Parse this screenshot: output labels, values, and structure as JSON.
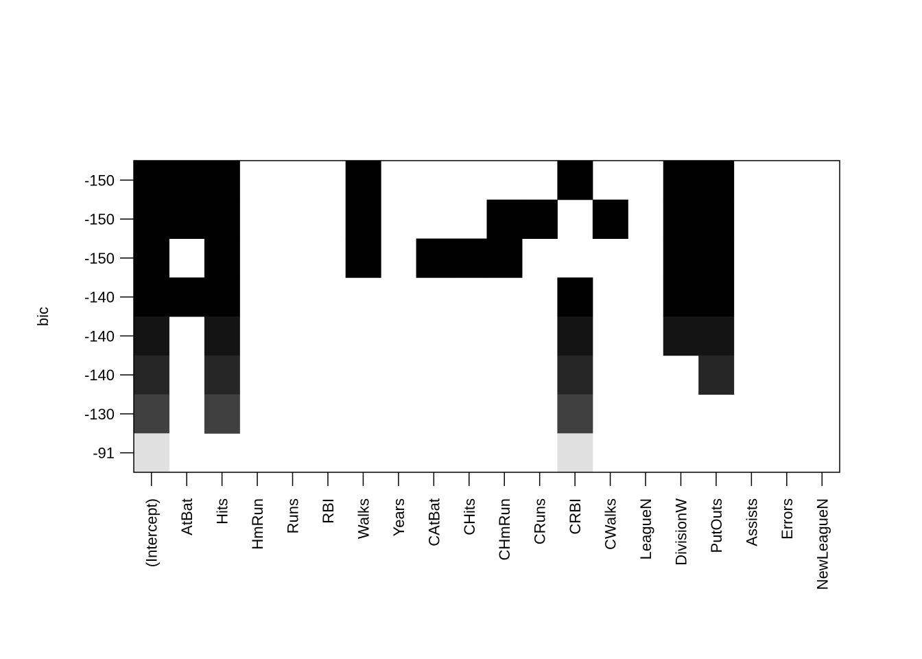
{
  "chart_data": {
    "type": "heatmap",
    "title": "",
    "xlabel": "",
    "ylabel": "bic",
    "grid": false,
    "variables": [
      "(Intercept)",
      "AtBat",
      "Hits",
      "HmRun",
      "Runs",
      "RBI",
      "Walks",
      "Years",
      "CAtBat",
      "CHits",
      "CHmRun",
      "CRuns",
      "CRBI",
      "CWalks",
      "LeagueN",
      "DivisionW",
      "PutOuts",
      "Assists",
      "Errors",
      "NewLeagueN"
    ],
    "rows": [
      {
        "bic_label": "-150",
        "fill": "#000000",
        "included": [
          "(Intercept)",
          "AtBat",
          "Hits",
          "Walks",
          "CRBI",
          "DivisionW",
          "PutOuts"
        ]
      },
      {
        "bic_label": "-150",
        "fill": "#000000",
        "included": [
          "(Intercept)",
          "AtBat",
          "Hits",
          "Walks",
          "CHmRun",
          "CRuns",
          "CWalks",
          "DivisionW",
          "PutOuts"
        ]
      },
      {
        "bic_label": "-150",
        "fill": "#000000",
        "included": [
          "(Intercept)",
          "Hits",
          "Walks",
          "CAtBat",
          "CHits",
          "CHmRun",
          "DivisionW",
          "PutOuts"
        ]
      },
      {
        "bic_label": "-140",
        "fill": "#000000",
        "included": [
          "(Intercept)",
          "AtBat",
          "Hits",
          "CRBI",
          "DivisionW",
          "PutOuts"
        ]
      },
      {
        "bic_label": "-140",
        "fill": "#141414",
        "included": [
          "(Intercept)",
          "Hits",
          "CRBI",
          "DivisionW",
          "PutOuts"
        ]
      },
      {
        "bic_label": "-140",
        "fill": "#262626",
        "included": [
          "(Intercept)",
          "Hits",
          "CRBI",
          "PutOuts"
        ]
      },
      {
        "bic_label": "-130",
        "fill": "#404040",
        "included": [
          "(Intercept)",
          "Hits",
          "CRBI"
        ]
      },
      {
        "bic_label": "-91",
        "fill": "#e0e0e0",
        "included": [
          "(Intercept)",
          "CRBI"
        ]
      }
    ]
  }
}
